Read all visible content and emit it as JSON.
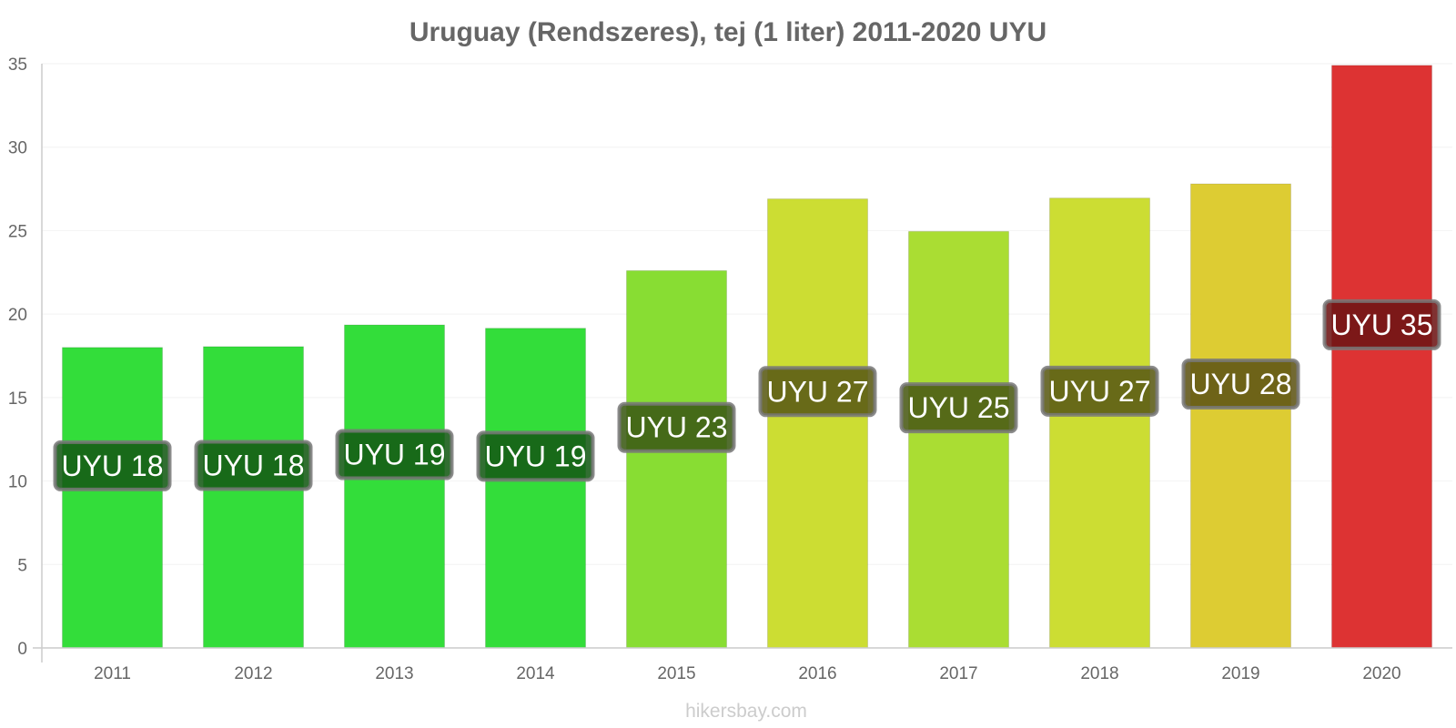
{
  "chart_data": {
    "type": "bar",
    "title": "Uruguay (Rendszeres), tej (1 liter) 2011-2020 UYU",
    "xlabel": "",
    "ylabel": "",
    "ylim": [
      0,
      35
    ],
    "yticks": [
      0,
      5,
      10,
      15,
      20,
      25,
      30,
      35
    ],
    "grid": true,
    "categories": [
      "2011",
      "2012",
      "2013",
      "2014",
      "2015",
      "2016",
      "2017",
      "2018",
      "2019",
      "2020"
    ],
    "values": [
      18.0,
      18.05,
      19.35,
      19.15,
      22.6,
      26.9,
      24.95,
      26.95,
      27.8,
      34.9
    ],
    "data_labels": [
      "UYU 18",
      "UYU 18",
      "UYU 19",
      "UYU 19",
      "UYU 23",
      "UYU 27",
      "UYU 25",
      "UYU 27",
      "UYU 28",
      "UYU 35"
    ],
    "colors": [
      "#33dd3a",
      "#33dd3a",
      "#33dd3a",
      "#33dd3a",
      "#88dd33",
      "#ccdd33",
      "#aadd33",
      "#ccdd33",
      "#ddcc33",
      "#dd3333"
    ],
    "label_bg_colors": [
      "#145a14",
      "#145a14",
      "#145a14",
      "#145a14",
      "#3b5a14",
      "#5a5a14",
      "#4a5a14",
      "#5a5a14",
      "#5e5414",
      "#6e1414"
    ]
  },
  "credit": "hikersbay.com"
}
